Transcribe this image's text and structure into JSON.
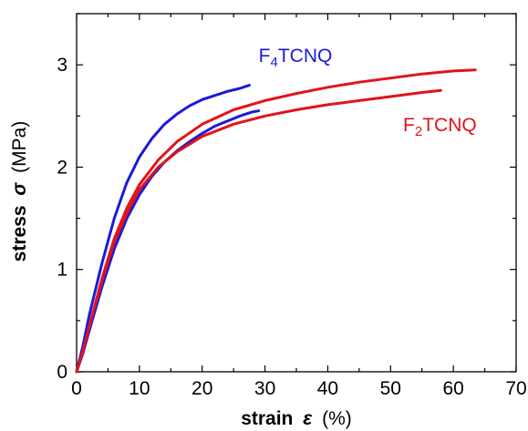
{
  "chart_data": {
    "type": "line",
    "xlabel": {
      "word": "strain",
      "symbol": "ε",
      "unit": "(%)"
    },
    "ylabel": {
      "word": "stress",
      "symbol": "σ",
      "unit": "(MPa)"
    },
    "xlim": [
      0,
      70
    ],
    "ylim": [
      0,
      3.5
    ],
    "x_ticks": [
      0,
      10,
      20,
      30,
      40,
      50,
      60,
      70
    ],
    "y_ticks": [
      0,
      1,
      2,
      3
    ],
    "grid": false,
    "annotations": [
      {
        "label": "F4TCNQ",
        "base": "F",
        "sub": "4",
        "rest": "TCNQ",
        "color": "#1a1adc",
        "x": 29,
        "y": 3.03
      },
      {
        "label": "F2TCNQ",
        "base": "F",
        "sub": "2",
        "rest": "TCNQ",
        "color": "#e0141a",
        "x": 52,
        "y": 2.35
      }
    ],
    "series": [
      {
        "color": "#1a1adc",
        "x": [
          0,
          1,
          2,
          4,
          6,
          8,
          10,
          12,
          14,
          16,
          18,
          20,
          22,
          24,
          26,
          27.5
        ],
        "y": [
          0,
          0.25,
          0.55,
          1.05,
          1.5,
          1.85,
          2.1,
          2.28,
          2.42,
          2.52,
          2.6,
          2.66,
          2.7,
          2.74,
          2.77,
          2.8
        ]
      },
      {
        "color": "#1a1adc",
        "x": [
          0,
          1,
          2,
          4,
          6,
          8,
          10,
          12,
          14,
          16,
          18,
          20,
          22,
          24,
          26,
          28,
          29
        ],
        "y": [
          0,
          0.18,
          0.4,
          0.82,
          1.2,
          1.5,
          1.73,
          1.91,
          2.05,
          2.16,
          2.25,
          2.33,
          2.4,
          2.45,
          2.5,
          2.54,
          2.55
        ]
      },
      {
        "color": "#e0141a",
        "x": [
          0,
          1,
          2,
          4,
          6,
          8,
          10,
          13,
          16,
          20,
          25,
          30,
          35,
          40,
          45,
          50,
          55,
          60,
          63.5
        ],
        "y": [
          0,
          0.2,
          0.44,
          0.9,
          1.3,
          1.6,
          1.83,
          2.07,
          2.25,
          2.42,
          2.56,
          2.65,
          2.72,
          2.78,
          2.83,
          2.87,
          2.91,
          2.94,
          2.95
        ]
      },
      {
        "color": "#e0141a",
        "x": [
          0,
          1,
          2,
          4,
          6,
          8,
          10,
          13,
          16,
          20,
          25,
          30,
          35,
          40,
          45,
          50,
          55,
          58
        ],
        "y": [
          0,
          0.2,
          0.44,
          0.88,
          1.27,
          1.55,
          1.78,
          2.0,
          2.15,
          2.3,
          2.42,
          2.5,
          2.56,
          2.61,
          2.65,
          2.69,
          2.73,
          2.75
        ]
      }
    ]
  }
}
